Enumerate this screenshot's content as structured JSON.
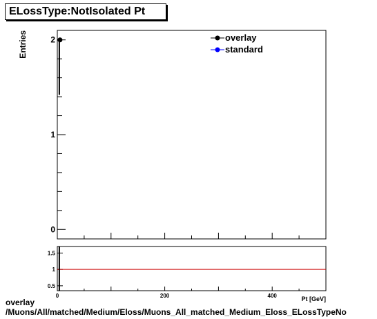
{
  "title": "ELossType:NotIsolated Pt",
  "footer": {
    "line1": "overlay",
    "line2": "/Muons/All/matched/Medium/Eloss/Muons_All_matched_Medium_Eloss_ELossTypeNo"
  },
  "colors": {
    "overlay": "#000000",
    "standard": "#0000ff",
    "ratio_line": "#cc0000"
  },
  "chart_data": [
    {
      "type": "scatter",
      "xlabel": "Pt [GeV]",
      "ylabel": "Entries",
      "xlim": [
        0,
        500
      ],
      "ylim": [
        -0.1,
        2.1
      ],
      "yticks": [
        0,
        1,
        2
      ],
      "legend_position": "top-right",
      "series": [
        {
          "name": "overlay",
          "x": [
            5
          ],
          "y": [
            2
          ]
        },
        {
          "name": "standard",
          "x": [],
          "y": []
        }
      ]
    },
    {
      "type": "line",
      "xlim": [
        0,
        500
      ],
      "ylim": [
        0.35,
        1.7
      ],
      "xticks": [
        0,
        200,
        400
      ],
      "yticks": [
        0.5,
        1,
        1.5
      ],
      "series": [
        {
          "name": "ratio",
          "x": [
            0,
            500
          ],
          "y": [
            1,
            1
          ]
        }
      ]
    }
  ]
}
